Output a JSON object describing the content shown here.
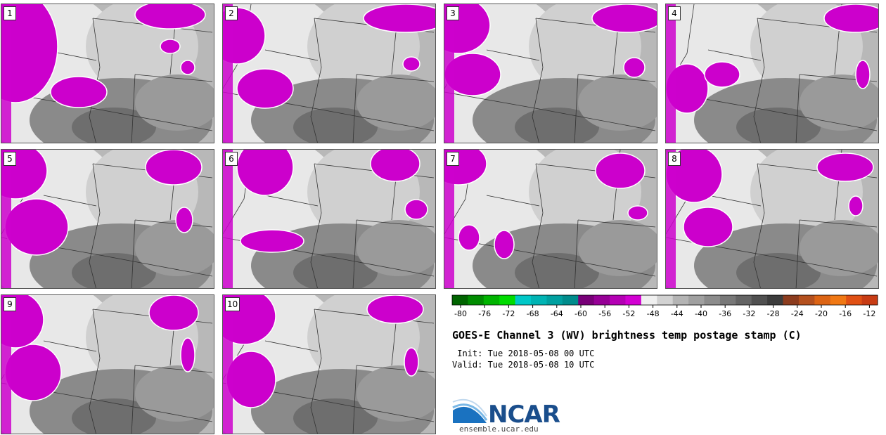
{
  "panels": [
    {
      "label": "1"
    },
    {
      "label": "2"
    },
    {
      "label": "3"
    },
    {
      "label": "4"
    },
    {
      "label": "5"
    },
    {
      "label": "6"
    },
    {
      "label": "7"
    },
    {
      "label": "8"
    },
    {
      "label": "9"
    },
    {
      "label": "10"
    }
  ],
  "colorbar": {
    "ticks": [
      "-80",
      "-76",
      "-72",
      "-68",
      "-64",
      "-60",
      "-56",
      "-52",
      "-48",
      "-44",
      "-40",
      "-36",
      "-32",
      "-28",
      "-24",
      "-20",
      "-16",
      "-12"
    ],
    "colors": [
      "#006400",
      "#008c00",
      "#00b400",
      "#00dc00",
      "#00c8c8",
      "#00b4b4",
      "#00a0a0",
      "#008c8c",
      "#780078",
      "#960096",
      "#b400b4",
      "#d200d2",
      "#f0f0f0",
      "#d2d2d2",
      "#b4b4b4",
      "#a0a0a0",
      "#8c8c8c",
      "#787878",
      "#646464",
      "#505050",
      "#3c3c3c",
      "#8c3c1e",
      "#b4501e",
      "#dc6414",
      "#f07814",
      "#e05014",
      "#c83c14"
    ]
  },
  "title": "GOES-E Channel 3 (WV) brightness temp postage stamp (C)",
  "init": " Init: Tue 2018-05-08 00 UTC",
  "valid": "Valid: Tue 2018-05-08 10 UTC",
  "logo": {
    "name": "NCAR",
    "url": "ensemble.ucar.edu"
  }
}
